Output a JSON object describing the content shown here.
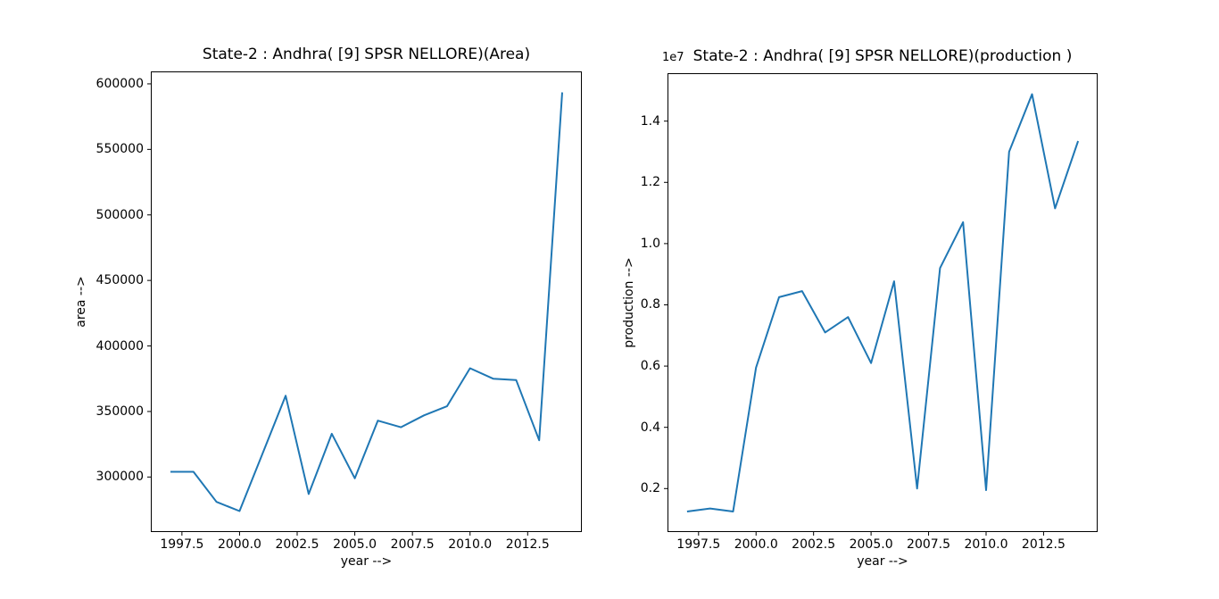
{
  "figure": {
    "background": "#ffffff",
    "line_color": "#1f77b4",
    "axis_color": "#000000"
  },
  "chart_data": [
    {
      "type": "line",
      "title": "State-2 : Andhra( [9] SPSR NELLORE)(Area)",
      "xlabel": "year -->",
      "ylabel": "area -->",
      "offset_text": "",
      "legend": "none",
      "grid": false,
      "x": [
        1997,
        1998,
        1999,
        2000,
        2001,
        2002,
        2003,
        2004,
        2005,
        2006,
        2007,
        2008,
        2009,
        2010,
        2011,
        2012,
        2013,
        2014
      ],
      "values": [
        304000,
        304000,
        281000,
        274000,
        318000,
        362000,
        287000,
        333000,
        299000,
        343000,
        338000,
        347000,
        354000,
        383000,
        375000,
        374000,
        328000,
        593500
      ],
      "xlim": [
        1996.15,
        2014.85
      ],
      "ylim": [
        258000,
        609500
      ],
      "x_ticks": [
        1997.5,
        2000.0,
        2002.5,
        2005.0,
        2007.5,
        2010.0,
        2012.5
      ],
      "x_tick_labels": [
        "1997.5",
        "2000.0",
        "2002.5",
        "2005.0",
        "2007.5",
        "2010.0",
        "2012.5"
      ],
      "y_ticks": [
        300000,
        350000,
        400000,
        450000,
        500000,
        550000,
        600000
      ],
      "y_tick_labels": [
        "300000",
        "350000",
        "400000",
        "450000",
        "500000",
        "550000",
        "600000"
      ]
    },
    {
      "type": "line",
      "title": "State-2 : Andhra( [9] SPSR NELLORE)(production )",
      "xlabel": "year -->",
      "ylabel": "production -->",
      "offset_text": "1e7",
      "legend": "none",
      "grid": false,
      "x": [
        1997,
        1998,
        1999,
        2000,
        2001,
        2002,
        2003,
        2004,
        2005,
        2006,
        2007,
        2008,
        2009,
        2010,
        2011,
        2012,
        2013,
        2014
      ],
      "values": [
        1250000,
        1350000,
        1250000,
        5950000,
        8250000,
        8450000,
        7100000,
        7600000,
        6100000,
        8770000,
        2000000,
        9200000,
        10700000,
        1950000,
        13000000,
        14880000,
        11150000,
        13350000
      ],
      "xlim": [
        1996.15,
        2014.85
      ],
      "ylim": [
        580000,
        15565000
      ],
      "x_ticks": [
        1997.5,
        2000.0,
        2002.5,
        2005.0,
        2007.5,
        2010.0,
        2012.5
      ],
      "x_tick_labels": [
        "1997.5",
        "2000.0",
        "2002.5",
        "2005.0",
        "2007.5",
        "2010.0",
        "2012.5"
      ],
      "y_ticks": [
        2000000,
        4000000,
        6000000,
        8000000,
        10000000,
        12000000,
        14000000
      ],
      "y_tick_labels": [
        "0.2",
        "0.4",
        "0.6",
        "0.8",
        "1.0",
        "1.2",
        "1.4"
      ]
    }
  ]
}
